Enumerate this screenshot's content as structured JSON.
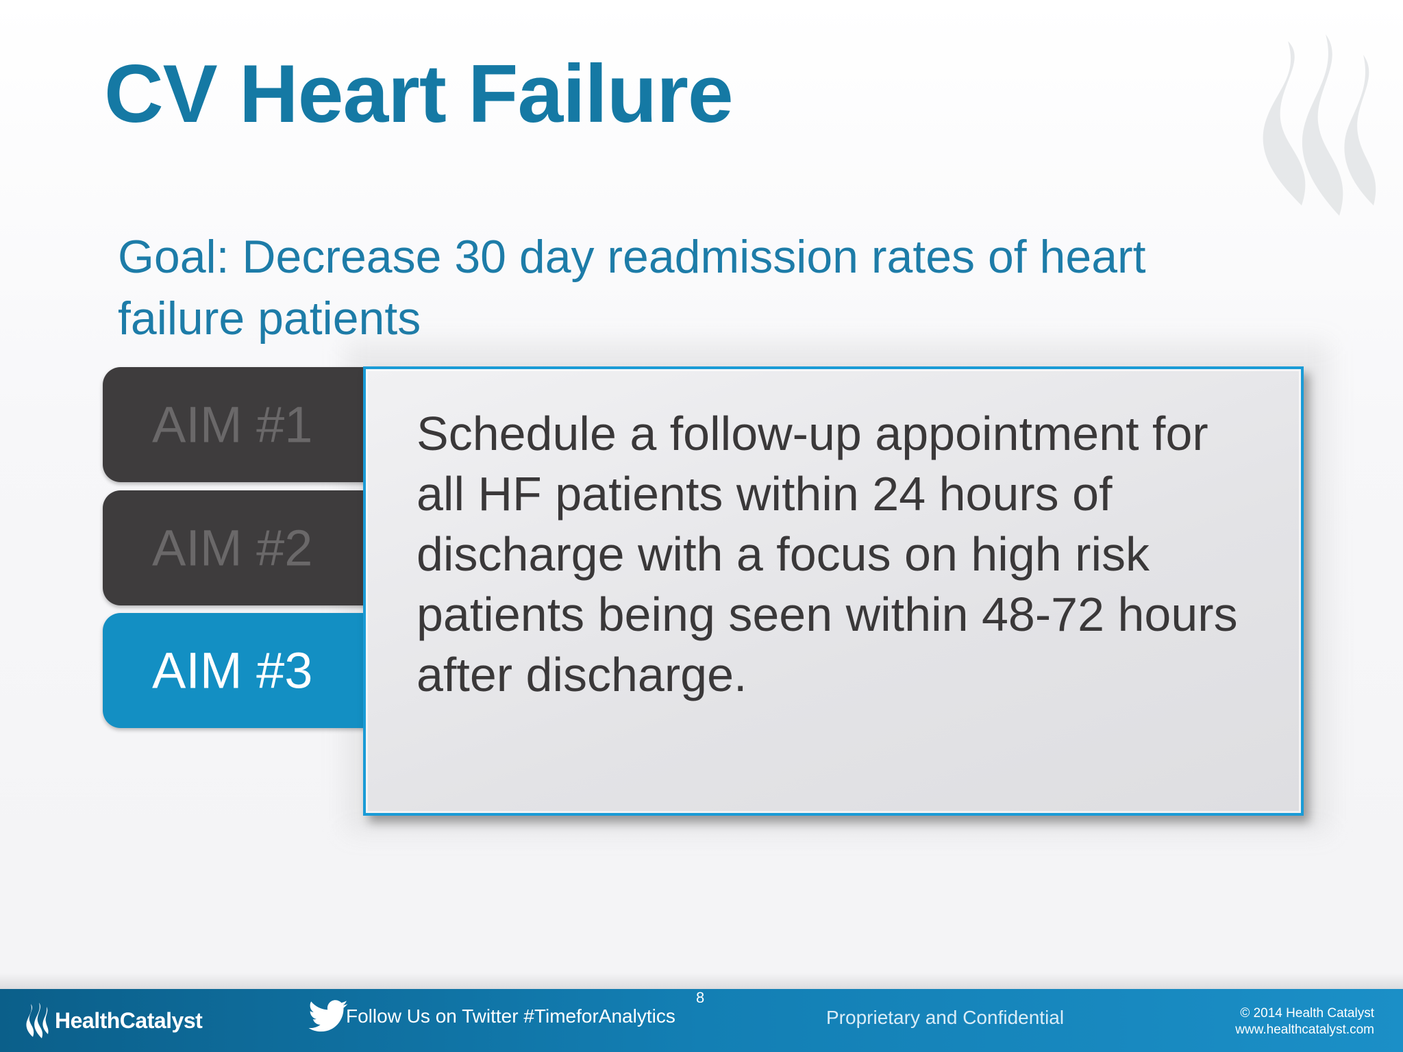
{
  "slide": {
    "title": "CV Heart Failure",
    "goal": "Goal: Decrease 30 day readmission rates of heart failure patients",
    "aims": [
      {
        "label": "AIM #1",
        "active": false
      },
      {
        "label": "AIM #2",
        "active": false
      },
      {
        "label": "AIM #3",
        "active": true
      }
    ],
    "aim_text": "Schedule a follow-up appointment for all HF patients within 24 hours of discharge with a focus on high risk patients being seen within 48-72 hours after discharge."
  },
  "footer": {
    "logo_text": "HealthCatalyst",
    "twitter_text": "Follow Us on Twitter #TimeforAnalytics",
    "page_number": "8",
    "confidential": "Proprietary and Confidential",
    "copyright": "© 2014 Health Catalyst",
    "website": "www.healthcatalyst.com"
  },
  "colors": {
    "title_blue": "#1579a4",
    "active_tab": "#138fc3",
    "inactive_tab": "#3e3c3d",
    "panel_border": "#1a9bd6"
  },
  "icons": [
    "health-catalyst-flame-icon",
    "twitter-bird-icon"
  ]
}
